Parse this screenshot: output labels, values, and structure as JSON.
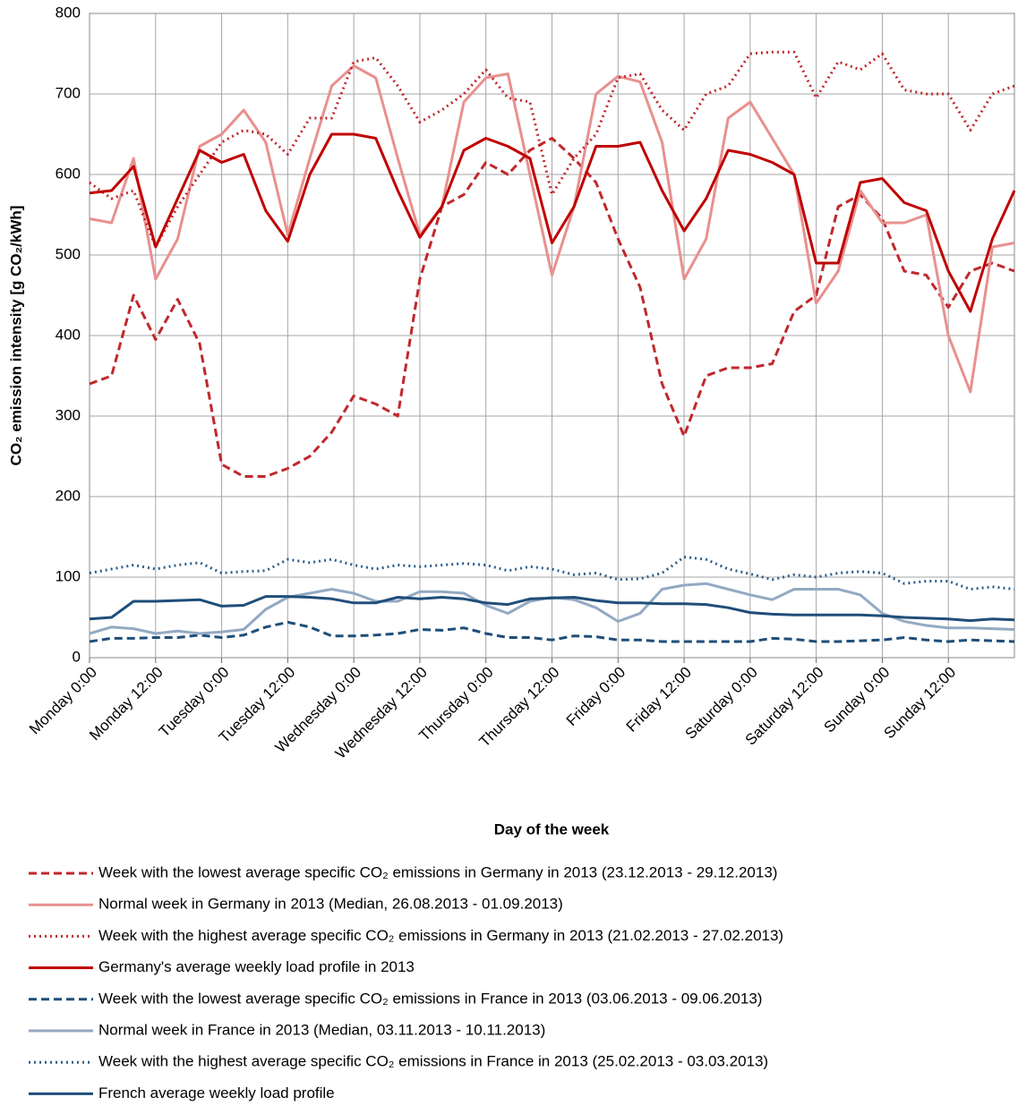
{
  "chart_data": {
    "type": "line",
    "y_label": "CO₂ emission intensity [g CO₂/kWh]",
    "x_label": "Day of the week",
    "x": [
      0,
      4,
      8,
      12,
      16,
      20,
      24,
      28,
      32,
      36,
      40,
      44,
      48,
      52,
      56,
      60,
      64,
      68,
      72,
      76,
      80,
      84,
      88,
      92,
      96,
      100,
      104,
      108,
      112,
      116,
      120,
      124,
      128,
      132,
      136,
      140,
      144,
      148,
      152,
      156,
      160,
      164,
      168
    ],
    "xlim": [
      0,
      168
    ],
    "xticks": [
      {
        "value": 0,
        "label": "Monday 0:00"
      },
      {
        "value": 12,
        "label": "Monday 12:00"
      },
      {
        "value": 24,
        "label": "Tuesday 0:00"
      },
      {
        "value": 36,
        "label": "Tuesday 12:00"
      },
      {
        "value": 48,
        "label": "Wednesday 0:00"
      },
      {
        "value": 60,
        "label": "Wednesday 12:00"
      },
      {
        "value": 72,
        "label": "Thursday 0:00"
      },
      {
        "value": 84,
        "label": "Thursday 12:00"
      },
      {
        "value": 96,
        "label": "Friday 0:00"
      },
      {
        "value": 108,
        "label": "Friday 12:00"
      },
      {
        "value": 120,
        "label": "Saturday 0:00"
      },
      {
        "value": 132,
        "label": "Saturday 12:00"
      },
      {
        "value": 144,
        "label": "Sunday 0:00"
      },
      {
        "value": 156,
        "label": "Sunday 12:00"
      }
    ],
    "ylim": [
      0,
      800
    ],
    "yticks": [
      0,
      100,
      200,
      300,
      400,
      500,
      600,
      700,
      800
    ],
    "grid": true,
    "series": [
      {
        "name": "Week with the lowest average specific CO₂ emissions in Germany in 2013 (23.12.2013 - 29.12.2013)",
        "color": "#c0282d",
        "dash": "dash",
        "values": [
          340,
          350,
          450,
          395,
          445,
          390,
          240,
          225,
          225,
          235,
          250,
          280,
          325,
          315,
          300,
          470,
          560,
          575,
          615,
          600,
          630,
          645,
          620,
          590,
          520,
          460,
          340,
          275,
          350,
          360,
          360,
          365,
          430,
          450,
          560,
          575,
          545,
          480,
          475,
          435,
          480,
          490,
          480
        ]
      },
      {
        "name": "Normal week in Germany in 2013 (Median, 26.08.2013 - 01.09.2013)",
        "color": "#e8908f",
        "dash": "solid",
        "values": [
          545,
          540,
          620,
          470,
          520,
          635,
          650,
          680,
          640,
          525,
          620,
          710,
          735,
          720,
          620,
          525,
          560,
          690,
          720,
          725,
          600,
          475,
          560,
          700,
          722,
          715,
          640,
          470,
          520,
          670,
          690,
          645,
          600,
          440,
          480,
          580,
          540,
          540,
          550,
          400,
          330,
          510,
          515
        ]
      },
      {
        "name": "Week with the highest average specific CO₂ emissions in Germany in 2013 (21.02.2013 - 27.02.2013)",
        "color": "#c0282d",
        "dash": "dot",
        "values": [
          590,
          570,
          580,
          510,
          560,
          600,
          640,
          655,
          650,
          625,
          670,
          670,
          740,
          745,
          710,
          665,
          680,
          700,
          730,
          695,
          690,
          575,
          620,
          650,
          720,
          725,
          680,
          655,
          700,
          710,
          750,
          752,
          752,
          695,
          740,
          730,
          750,
          705,
          700,
          700,
          655,
          700,
          710
        ]
      },
      {
        "name": "Germany's average weekly load profile in 2013",
        "color": "#c00000",
        "dash": "solid",
        "values": [
          577,
          580,
          610,
          510,
          570,
          630,
          615,
          625,
          555,
          517,
          600,
          650,
          650,
          645,
          580,
          522,
          560,
          630,
          645,
          635,
          620,
          515,
          560,
          635,
          635,
          640,
          580,
          530,
          570,
          630,
          625,
          615,
          600,
          490,
          490,
          590,
          595,
          565,
          555,
          480,
          430,
          520,
          580
        ]
      },
      {
        "name": "Week with the lowest average specific CO₂ emissions in France in 2013 (03.06.2013 - 09.06.2013)",
        "color": "#1f4e79",
        "dash": "dash",
        "values": [
          20,
          24,
          24,
          25,
          25,
          28,
          25,
          28,
          38,
          44,
          38,
          27,
          27,
          28,
          30,
          35,
          34,
          37,
          30,
          25,
          25,
          22,
          27,
          26,
          22,
          22,
          20,
          20,
          20,
          20,
          20,
          24,
          23,
          20,
          20,
          21,
          22,
          25,
          22,
          20,
          22,
          21,
          20
        ]
      },
      {
        "name": "Normal week in France in 2013 (Median, 03.11.2013 - 10.11.2013)",
        "color": "#93a9c3",
        "dash": "solid",
        "values": [
          30,
          38,
          36,
          30,
          33,
          30,
          32,
          35,
          60,
          75,
          80,
          85,
          80,
          70,
          70,
          82,
          82,
          80,
          65,
          55,
          70,
          75,
          72,
          62,
          45,
          55,
          85,
          90,
          92,
          85,
          78,
          72,
          85,
          85,
          85,
          78,
          55,
          45,
          40,
          37,
          37,
          36,
          35
        ]
      },
      {
        "name": "Week with the highest average specific CO₂ emissions in France in 2013 (25.02.2013 - 03.03.2013)",
        "color": "#2e5e8a",
        "dash": "dot",
        "values": [
          105,
          110,
          115,
          110,
          115,
          118,
          105,
          107,
          108,
          122,
          118,
          122,
          115,
          110,
          115,
          113,
          115,
          117,
          115,
          108,
          113,
          110,
          103,
          105,
          97,
          98,
          105,
          125,
          122,
          110,
          104,
          97,
          103,
          100,
          105,
          107,
          105,
          92,
          95,
          95,
          85,
          88,
          85
        ]
      },
      {
        "name": "French average weekly load profile",
        "color": "#1f4e79",
        "dash": "solid",
        "values": [
          48,
          50,
          70,
          70,
          71,
          72,
          64,
          65,
          76,
          76,
          75,
          73,
          68,
          68,
          75,
          73,
          75,
          73,
          68,
          66,
          73,
          74,
          75,
          71,
          68,
          68,
          67,
          67,
          66,
          62,
          56,
          54,
          53,
          53,
          53,
          53,
          52,
          50,
          49,
          48,
          46,
          48,
          47
        ]
      }
    ]
  }
}
